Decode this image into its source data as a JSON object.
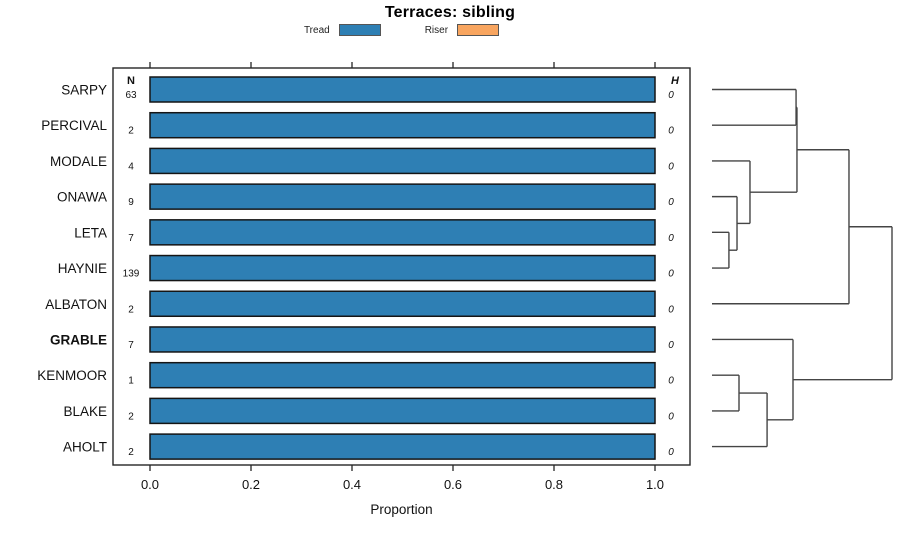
{
  "figure": {
    "title": "Terraces: sibling"
  },
  "chart_data": {
    "type": "bar",
    "orientation": "horizontal",
    "title": "Terraces: sibling",
    "xlabel": "Proportion",
    "xlim": [
      0,
      1.07
    ],
    "xtick_values": [
      0,
      0.2,
      0.4,
      0.6,
      0.8,
      1.0
    ],
    "xticks": [
      "0.0",
      "0.2",
      "0.4",
      "0.6",
      "0.8",
      "1.0"
    ],
    "grid": false,
    "legend_position": "top-center",
    "categories": [
      "SARPY",
      "PERCIVAL",
      "MODALE",
      "ONAWA",
      "LETA",
      "HAYNIE",
      "ALBATON",
      "GRABLE",
      "KENMOOR",
      "BLAKE",
      "AHOLT"
    ],
    "emphasized_category": "GRABLE",
    "n_column": {
      "header": "N",
      "values": [
        63,
        2,
        4,
        9,
        7,
        139,
        2,
        7,
        1,
        2,
        2
      ]
    },
    "h_column": {
      "header": "H",
      "values": [
        0,
        0,
        0,
        0,
        0,
        0,
        0,
        0,
        0,
        0,
        0
      ]
    },
    "series": [
      {
        "name": "Tread",
        "color": "#2E7FB4",
        "values": [
          1,
          1,
          1,
          1,
          1,
          1,
          1,
          1,
          1,
          1,
          1
        ]
      },
      {
        "name": "Riser",
        "color": "#F8A55F",
        "values": [
          0,
          0,
          0,
          0,
          0,
          0,
          0,
          0,
          0,
          0,
          0
        ]
      }
    ],
    "dendrogram": {
      "height": 1.0,
      "children": [
        {
          "height": 0.761,
          "children": [
            {
              "height": 0.472,
              "children": [
                {
                  "height": 0.467,
                  "children": [
                    {
                      "leaf": "SARPY"
                    },
                    {
                      "leaf": "PERCIVAL"
                    }
                  ]
                },
                {
                  "height": 0.211,
                  "children": [
                    {
                      "leaf": "MODALE"
                    },
                    {
                      "height": 0.139,
                      "children": [
                        {
                          "leaf": "ONAWA"
                        },
                        {
                          "height": 0.094,
                          "children": [
                            {
                              "leaf": "LETA"
                            },
                            {
                              "leaf": "HAYNIE"
                            }
                          ]
                        }
                      ]
                    }
                  ]
                }
              ]
            },
            {
              "leaf": "ALBATON"
            }
          ]
        },
        {
          "height": 0.45,
          "children": [
            {
              "leaf": "GRABLE"
            },
            {
              "height": 0.306,
              "children": [
                {
                  "height": 0.15,
                  "children": [
                    {
                      "leaf": "KENMOOR"
                    },
                    {
                      "leaf": "BLAKE"
                    }
                  ]
                },
                {
                  "leaf": "AHOLT"
                }
              ]
            }
          ]
        }
      ]
    }
  }
}
